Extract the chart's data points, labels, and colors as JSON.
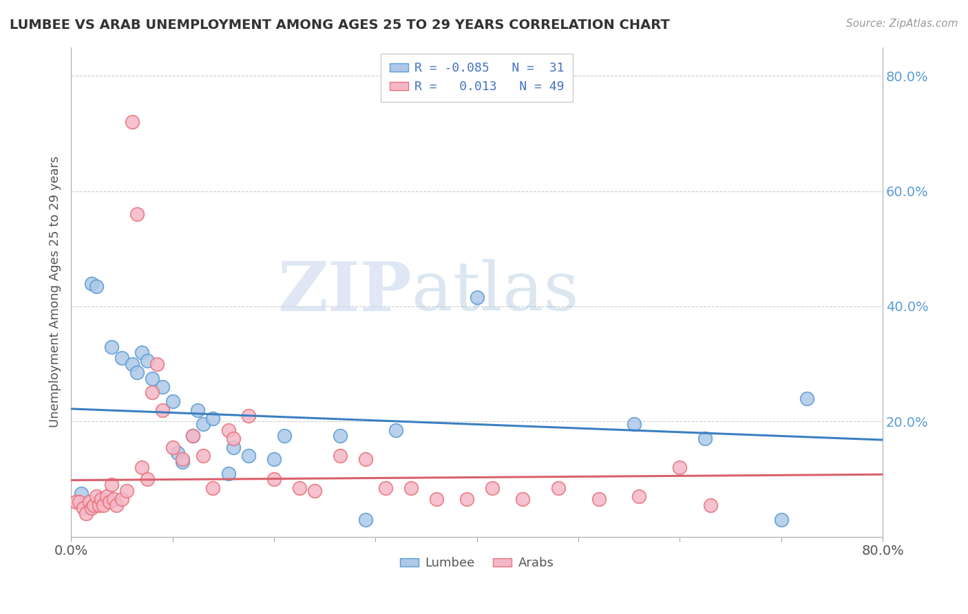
{
  "title": "LUMBEE VS ARAB UNEMPLOYMENT AMONG AGES 25 TO 29 YEARS CORRELATION CHART",
  "source_text": "Source: ZipAtlas.com",
  "xlabel": "",
  "ylabel": "Unemployment Among Ages 25 to 29 years",
  "xlim": [
    0.0,
    0.8
  ],
  "ylim": [
    0.0,
    0.85
  ],
  "xticks": [
    0.0,
    0.1,
    0.2,
    0.3,
    0.4,
    0.5,
    0.6,
    0.7,
    0.8
  ],
  "xticklabels": [
    "0.0%",
    "",
    "",
    "",
    "",
    "",
    "",
    "",
    "80.0%"
  ],
  "yticks": [
    0.0,
    0.2,
    0.4,
    0.6,
    0.8
  ],
  "yticklabels": [
    "",
    "20.0%",
    "40.0%",
    "60.0%",
    "80.0%"
  ],
  "lumbee_color": "#aec9e8",
  "arab_color": "#f5b8c8",
  "lumbee_edge_color": "#5b9bd5",
  "arab_edge_color": "#e8737a",
  "lumbee_line_color": "#3a7fc1",
  "arab_line_color": "#d9606a",
  "lumbee_R": -0.085,
  "lumbee_N": 31,
  "arab_R": 0.013,
  "arab_N": 49,
  "watermark": "ZIPatlas",
  "background_color": "#ffffff",
  "lumbee_trend_start": 0.222,
  "lumbee_trend_end": 0.168,
  "arab_trend_start": 0.098,
  "arab_trend_end": 0.108,
  "lumbee_x": [
    0.01,
    0.02,
    0.025,
    0.04,
    0.05,
    0.06,
    0.065,
    0.07,
    0.075,
    0.08,
    0.09,
    0.1,
    0.105,
    0.11,
    0.12,
    0.125,
    0.13,
    0.14,
    0.155,
    0.16,
    0.175,
    0.2,
    0.21,
    0.265,
    0.29,
    0.32,
    0.4,
    0.555,
    0.625,
    0.7,
    0.725
  ],
  "lumbee_y": [
    0.075,
    0.44,
    0.435,
    0.33,
    0.31,
    0.3,
    0.285,
    0.32,
    0.305,
    0.275,
    0.26,
    0.235,
    0.145,
    0.13,
    0.175,
    0.22,
    0.195,
    0.205,
    0.11,
    0.155,
    0.14,
    0.135,
    0.175,
    0.175,
    0.03,
    0.185,
    0.415,
    0.195,
    0.17,
    0.03,
    0.24
  ],
  "arab_x": [
    0.005,
    0.008,
    0.012,
    0.015,
    0.018,
    0.02,
    0.022,
    0.025,
    0.028,
    0.03,
    0.032,
    0.035,
    0.038,
    0.04,
    0.042,
    0.045,
    0.05,
    0.055,
    0.06,
    0.065,
    0.07,
    0.075,
    0.08,
    0.085,
    0.09,
    0.1,
    0.11,
    0.12,
    0.13,
    0.14,
    0.155,
    0.16,
    0.175,
    0.2,
    0.225,
    0.24,
    0.265,
    0.29,
    0.31,
    0.335,
    0.36,
    0.39,
    0.415,
    0.445,
    0.48,
    0.52,
    0.56,
    0.6,
    0.63
  ],
  "arab_y": [
    0.06,
    0.06,
    0.05,
    0.04,
    0.06,
    0.05,
    0.055,
    0.07,
    0.055,
    0.065,
    0.055,
    0.07,
    0.06,
    0.09,
    0.065,
    0.055,
    0.065,
    0.08,
    0.72,
    0.56,
    0.12,
    0.1,
    0.25,
    0.3,
    0.22,
    0.155,
    0.135,
    0.175,
    0.14,
    0.085,
    0.185,
    0.17,
    0.21,
    0.1,
    0.085,
    0.08,
    0.14,
    0.135,
    0.085,
    0.085,
    0.065,
    0.065,
    0.085,
    0.065,
    0.085,
    0.065,
    0.07,
    0.12,
    0.055
  ]
}
